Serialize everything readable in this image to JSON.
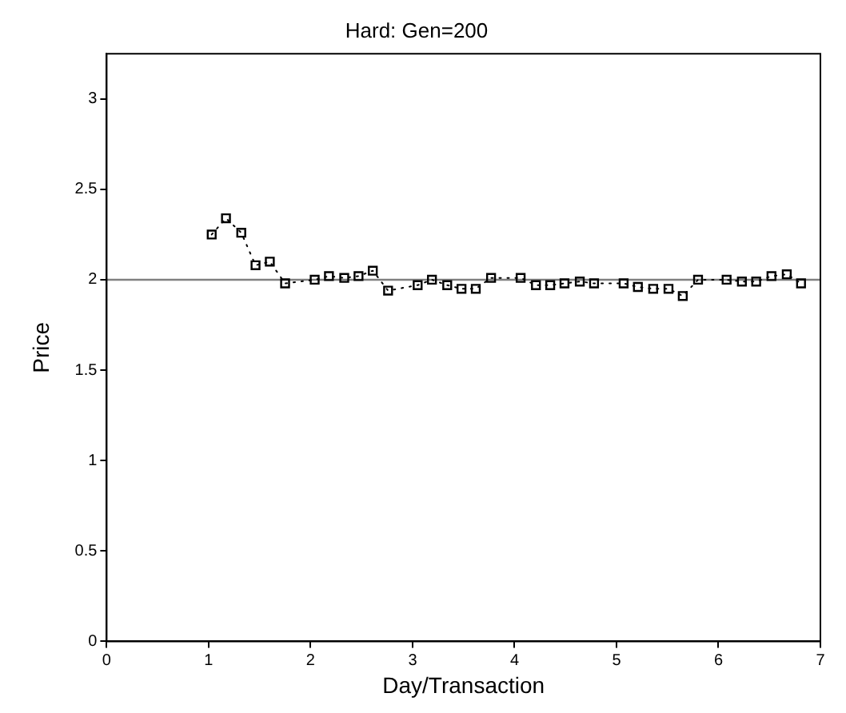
{
  "chart_data": {
    "type": "line",
    "title": "Hard: Gen=200",
    "xlabel": "Day/Transaction",
    "ylabel": "Price",
    "xlim": [
      0,
      7
    ],
    "xticks": [
      0,
      1,
      2,
      3,
      4,
      5,
      6,
      7
    ],
    "ylim": [
      0,
      3.25
    ],
    "yticks": [
      0,
      0.5,
      1,
      1.5,
      2,
      2.5,
      3
    ],
    "grid": false,
    "legend": false,
    "marker": "square",
    "line_style": "dotted",
    "series": [
      {
        "color": "#000000",
        "x": [
          1.03,
          1.17,
          1.32,
          1.46,
          1.6,
          1.75,
          2.04,
          2.18,
          2.33,
          2.47,
          2.61,
          2.76,
          3.05,
          3.19,
          3.34,
          3.48,
          3.62,
          3.77,
          4.06,
          4.21,
          4.35,
          4.49,
          4.64,
          4.78,
          5.07,
          5.21,
          5.36,
          5.51,
          5.65,
          5.8,
          6.08,
          6.23,
          6.37,
          6.52,
          6.67,
          6.81
        ],
        "values": [
          2.25,
          2.34,
          2.26,
          2.08,
          2.1,
          1.98,
          2.0,
          2.02,
          2.01,
          2.02,
          2.05,
          1.94,
          1.97,
          2.0,
          1.97,
          1.95,
          1.95,
          2.01,
          2.01,
          1.97,
          1.97,
          1.98,
          1.99,
          1.98,
          1.98,
          1.96,
          1.95,
          1.95,
          1.91,
          2.0,
          2.0,
          1.99,
          1.99,
          2.02,
          2.03,
          1.98
        ]
      }
    ],
    "ref_lines": [
      {
        "axis": "y",
        "value": 2,
        "color": "#808080",
        "line_style": "solid"
      }
    ]
  }
}
